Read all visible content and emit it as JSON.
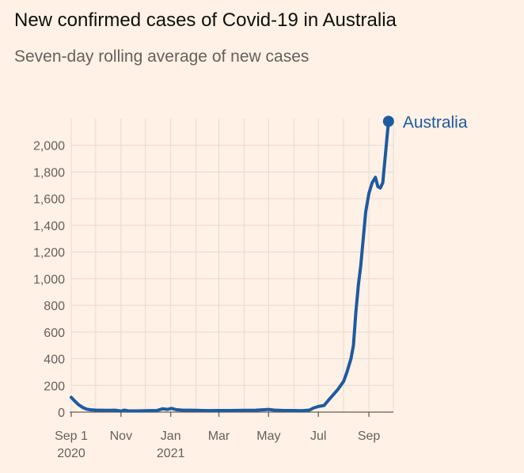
{
  "header": {
    "title": "New confirmed cases of Covid-19 in Australia",
    "subtitle": "Seven-day rolling average of new cases"
  },
  "colors": {
    "background": "#fff1e5",
    "series": "#1e5aa0",
    "grid": "#e3dbd4",
    "axis": "#66605c"
  },
  "chart_data": {
    "type": "line",
    "title": "New confirmed cases of Covid-19 in Australia",
    "subtitle": "Seven-day rolling average of new cases",
    "x_range": [
      "2020-09-01",
      "2021-10-01"
    ],
    "ylim": [
      0,
      2200
    ],
    "yticks": [
      0,
      200,
      400,
      600,
      800,
      1000,
      1200,
      1400,
      1600,
      1800,
      2000
    ],
    "ytick_labels": [
      "0",
      "200",
      "400",
      "600",
      "800",
      "1,000",
      "1,200",
      "1,400",
      "1,600",
      "1,800",
      "2,000"
    ],
    "xticks": [
      {
        "date": "2020-09-01",
        "label": "Sep 1",
        "sublabel": "2020"
      },
      {
        "date": "2020-11-01",
        "label": "Nov",
        "sublabel": ""
      },
      {
        "date": "2021-01-01",
        "label": "Jan",
        "sublabel": "2021"
      },
      {
        "date": "2021-03-01",
        "label": "Mar",
        "sublabel": ""
      },
      {
        "date": "2021-05-01",
        "label": "May",
        "sublabel": ""
      },
      {
        "date": "2021-07-01",
        "label": "Jul",
        "sublabel": ""
      },
      {
        "date": "2021-09-01",
        "label": "Sep",
        "sublabel": ""
      }
    ],
    "grid": true,
    "legend": "end-of-line label",
    "series": [
      {
        "name": "Australia",
        "color": "#1e5aa0",
        "points": [
          [
            "2020-09-01",
            110
          ],
          [
            "2020-09-05",
            85
          ],
          [
            "2020-09-10",
            55
          ],
          [
            "2020-09-15",
            35
          ],
          [
            "2020-09-20",
            22
          ],
          [
            "2020-09-25",
            17
          ],
          [
            "2020-10-01",
            15
          ],
          [
            "2020-10-15",
            13
          ],
          [
            "2020-10-25",
            14
          ],
          [
            "2020-11-01",
            8
          ],
          [
            "2020-11-05",
            15
          ],
          [
            "2020-11-10",
            9
          ],
          [
            "2020-11-20",
            9
          ],
          [
            "2020-12-01",
            10
          ],
          [
            "2020-12-15",
            12
          ],
          [
            "2020-12-22",
            25
          ],
          [
            "2020-12-28",
            20
          ],
          [
            "2021-01-02",
            28
          ],
          [
            "2021-01-08",
            18
          ],
          [
            "2021-01-15",
            15
          ],
          [
            "2021-02-01",
            13
          ],
          [
            "2021-02-15",
            11
          ],
          [
            "2021-03-01",
            12
          ],
          [
            "2021-03-15",
            12
          ],
          [
            "2021-04-01",
            13
          ],
          [
            "2021-04-15",
            14
          ],
          [
            "2021-05-01",
            20
          ],
          [
            "2021-05-08",
            15
          ],
          [
            "2021-05-20",
            12
          ],
          [
            "2021-06-01",
            12
          ],
          [
            "2021-06-10",
            10
          ],
          [
            "2021-06-20",
            15
          ],
          [
            "2021-06-25",
            30
          ],
          [
            "2021-07-01",
            42
          ],
          [
            "2021-07-08",
            50
          ],
          [
            "2021-07-15",
            100
          ],
          [
            "2021-07-20",
            135
          ],
          [
            "2021-07-25",
            170
          ],
          [
            "2021-08-01",
            230
          ],
          [
            "2021-08-05",
            300
          ],
          [
            "2021-08-10",
            400
          ],
          [
            "2021-08-13",
            500
          ],
          [
            "2021-08-16",
            750
          ],
          [
            "2021-08-19",
            950
          ],
          [
            "2021-08-22",
            1100
          ],
          [
            "2021-08-25",
            1300
          ],
          [
            "2021-08-28",
            1500
          ],
          [
            "2021-09-01",
            1640
          ],
          [
            "2021-09-05",
            1720
          ],
          [
            "2021-09-09",
            1760
          ],
          [
            "2021-09-12",
            1690
          ],
          [
            "2021-09-15",
            1680
          ],
          [
            "2021-09-18",
            1720
          ],
          [
            "2021-09-22",
            1980
          ],
          [
            "2021-09-25",
            2180
          ]
        ]
      }
    ]
  }
}
